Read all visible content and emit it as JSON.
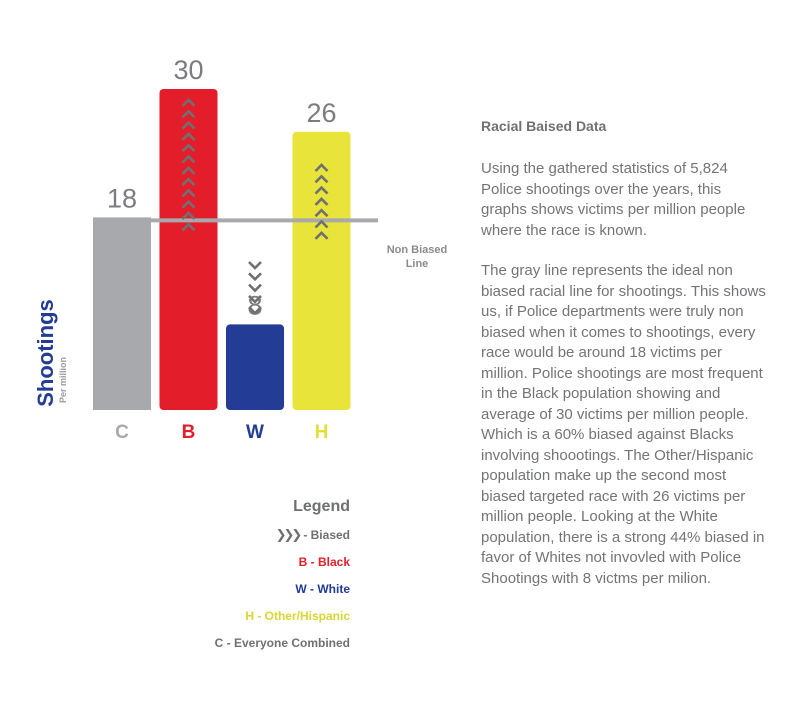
{
  "chart_data": {
    "type": "bar",
    "categories": [
      "C",
      "B",
      "W",
      "H"
    ],
    "values": [
      18,
      30,
      8,
      26
    ],
    "colors": [
      "#a7a9ac",
      "#e31e2a",
      "#233c96",
      "#e8e43a"
    ],
    "ylabel": "Shootings",
    "ylabel_sub": "Per million",
    "reference_line": {
      "value": 18,
      "label_line1": "Non Biased",
      "label_line2": "Line",
      "color": "#a7a9ac"
    },
    "markers": [
      {
        "category": "B",
        "icon": "chevron-up-icon",
        "count": 12
      },
      {
        "category": "W",
        "icon": "chevron-down-icon",
        "count": 5
      },
      {
        "category": "H",
        "icon": "chevron-up-icon",
        "count": 7
      }
    ],
    "value_label_color": "#7b7c7f"
  },
  "legend": {
    "title": "Legend",
    "biased_icon": "chevron-right-icon",
    "biased_symbol": "❯❯❯",
    "items": [
      {
        "label": "- Biased",
        "color": "#6f7072"
      },
      {
        "label": "B - Black",
        "color": "#e31e2a"
      },
      {
        "label": "W - White",
        "color": "#233c96"
      },
      {
        "label": "H - Other/Hispanic",
        "color": "#d9d532"
      },
      {
        "label": "C - Everyone Combined",
        "color": "#6f7072"
      }
    ]
  },
  "text_panel": {
    "title": "Racial Baised Data",
    "paragraph1": "Using the gathered statistics of 5,824 Police shootings over the years, this graphs shows victims per million people where the race is known.",
    "paragraph2": "The gray line represents the ideal non biased racial line for shootings. This shows us, if Police departments were truly non biased when it comes to shootings, every race would be around 18 victims per million. Police shootings are most frequent in the Black population showing and average of 30 victims per million people. Which is a 60% biased against Blacks involving shoootings. The Other/Hispanic population make up the second most biased targeted race with 26 victims per million people. Looking at the White population, there is a strong 44% biased in favor of Whites not invovled with Police Shootings with 8 victms per milion."
  }
}
